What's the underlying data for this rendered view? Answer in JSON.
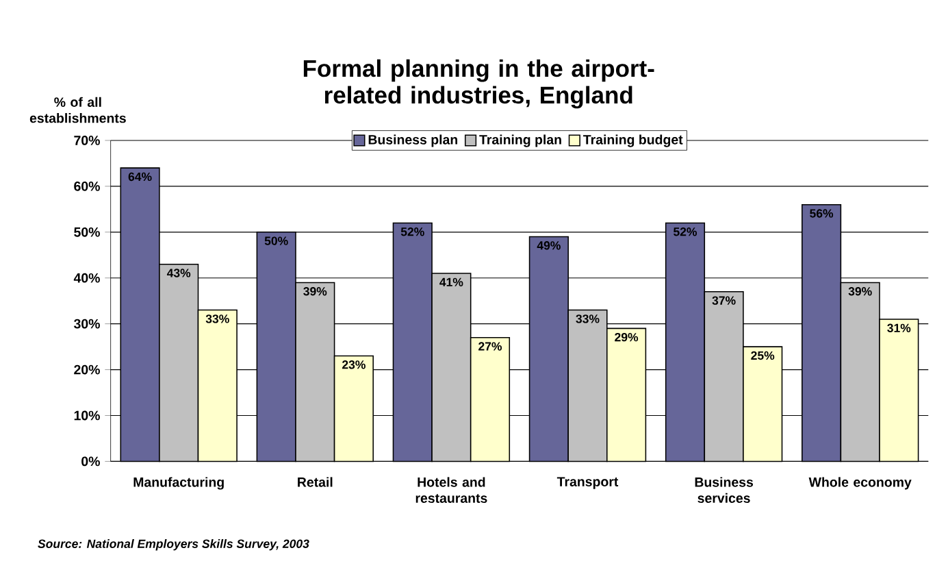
{
  "chart_data": {
    "type": "bar",
    "title": "Formal planning in the airport-related industries, England",
    "ylabel": "% of all establishments",
    "categories": [
      "Manufacturing",
      "Retail",
      "Hotels and restaurants",
      "Transport",
      "Business services",
      "Whole economy"
    ],
    "series": [
      {
        "name": "Business plan",
        "color": "#666699",
        "values": [
          64,
          50,
          52,
          49,
          52,
          56
        ],
        "value_labels": [
          "64%",
          "50%",
          "52%",
          "49%",
          "52%",
          "56%"
        ]
      },
      {
        "name": "Training plan",
        "color": "#c0c0c0",
        "values": [
          43,
          39,
          41,
          33,
          37,
          39
        ],
        "value_labels": [
          "43%",
          "39%",
          "41%",
          "33%",
          "37%",
          "39%"
        ]
      },
      {
        "name": "Training budget",
        "color": "#ffffcc",
        "values": [
          33,
          23,
          27,
          29,
          25,
          31
        ],
        "value_labels": [
          "33%",
          "23%",
          "27%",
          "29%",
          "25%",
          "31%"
        ]
      }
    ],
    "ylim": [
      0,
      70
    ],
    "yticks": [
      {
        "value": 0,
        "label": "0%"
      },
      {
        "value": 10,
        "label": "10%"
      },
      {
        "value": 20,
        "label": "20%"
      },
      {
        "value": 30,
        "label": "30%"
      },
      {
        "value": 40,
        "label": "40%"
      },
      {
        "value": 50,
        "label": "50%"
      },
      {
        "value": 60,
        "label": "60%"
      },
      {
        "value": 70,
        "label": "70%"
      }
    ],
    "grid": "y",
    "legend": "top",
    "annotations": [
      "*Source: National Employers Skills Survey, 2003*"
    ]
  }
}
